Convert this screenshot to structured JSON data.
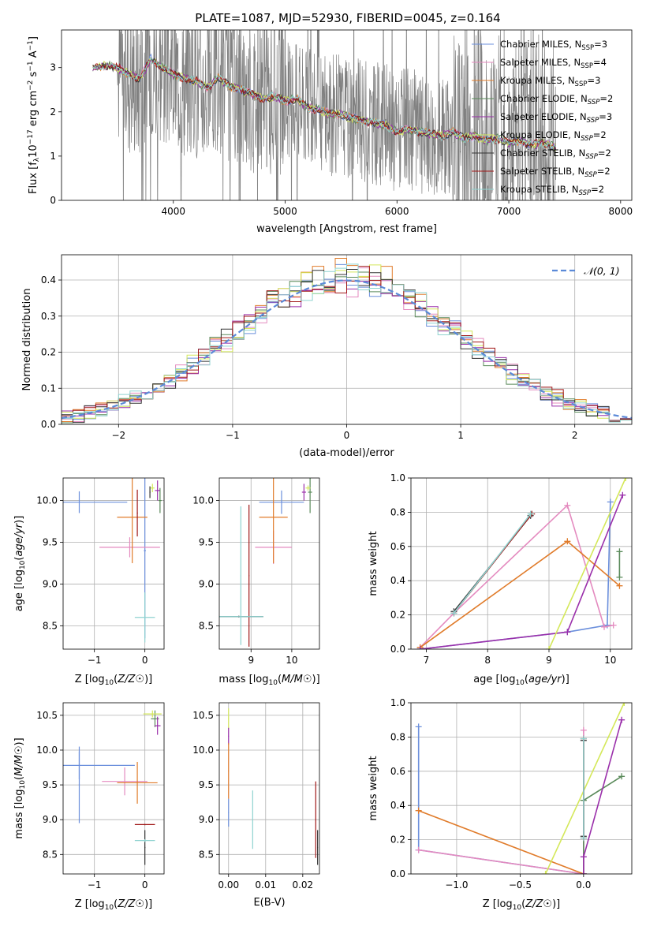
{
  "figure": {
    "title": "PLATE=1087, MJD=52930, FIBERID=0045, z=0.164"
  },
  "colors": {
    "chabrier_miles": "#6b8fdc",
    "salpeter_miles": "#e48abf",
    "kroupa_miles": "#e07b2a",
    "chabrier_elodie": "#5a8a5a",
    "salpeter_elodie": "#9a2faa",
    "kroupa_elodie": "#d4e85a",
    "chabrier_stelib": "#333333",
    "salpeter_stelib": "#a01818",
    "kroupa_stelib": "#8fd3d0",
    "data": "#808080",
    "normal": "#5b8ad8"
  },
  "legend": [
    {
      "key": "chabrier_miles",
      "pre": "Chabrier MILES, N",
      "sub": "SSP",
      "post": "=3"
    },
    {
      "key": "salpeter_miles",
      "pre": "Salpeter MILES, N",
      "sub": "SSP",
      "post": "=4"
    },
    {
      "key": "kroupa_miles",
      "pre": "Kroupa MILES, N",
      "sub": "SSP",
      "post": "=3"
    },
    {
      "key": "chabrier_elodie",
      "pre": "Chabrier ELODIE, N",
      "sub": "SSP",
      "post": "=2"
    },
    {
      "key": "salpeter_elodie",
      "pre": "Salpeter ELODIE, N",
      "sub": "SSP",
      "post": "=3"
    },
    {
      "key": "kroupa_elodie",
      "pre": "Kroupa ELODIE, N",
      "sub": "SSP",
      "post": "=2"
    },
    {
      "key": "chabrier_stelib",
      "pre": "Chabrier STELIB, N",
      "sub": "SSP",
      "post": "=2"
    },
    {
      "key": "salpeter_stelib",
      "pre": "Salpeter STELIB, N",
      "sub": "SSP",
      "post": "=2"
    },
    {
      "key": "kroupa_stelib",
      "pre": "Kroupa STELIB, N",
      "sub": "SSP",
      "post": "=2"
    }
  ],
  "chart_data": [
    {
      "id": "spectrum",
      "type": "line",
      "xlabel": "wavelength [Angstrom, rest frame]",
      "ylabel": "Flux [f_λ10^-17 erg cm^-2 s^-1 A^-1]",
      "xlim": [
        3000,
        8100
      ],
      "ylim": [
        0,
        3.85
      ],
      "xticks": [
        4000,
        5000,
        6000,
        7000,
        8000
      ],
      "yticks": [
        0,
        1,
        2,
        3
      ],
      "grid": false,
      "data_range": [
        3280,
        7420
      ],
      "model_range": [
        3280,
        7420
      ],
      "continuum": [
        [
          3280,
          3.0
        ],
        [
          3400,
          3.05
        ],
        [
          3500,
          3.0
        ],
        [
          3600,
          2.85
        ],
        [
          3700,
          2.75
        ],
        [
          3800,
          3.2
        ],
        [
          3900,
          3.0
        ],
        [
          4000,
          2.85
        ],
        [
          4100,
          2.75
        ],
        [
          4200,
          2.7
        ],
        [
          4300,
          2.55
        ],
        [
          4400,
          2.75
        ],
        [
          4500,
          2.6
        ],
        [
          4600,
          2.5
        ],
        [
          4700,
          2.4
        ],
        [
          4800,
          2.3
        ],
        [
          4900,
          2.35
        ],
        [
          5000,
          2.25
        ],
        [
          5100,
          2.3
        ],
        [
          5200,
          2.1
        ],
        [
          5300,
          2.05
        ],
        [
          5400,
          1.95
        ],
        [
          5500,
          1.95
        ],
        [
          5600,
          1.85
        ],
        [
          5700,
          1.8
        ],
        [
          5800,
          1.75
        ],
        [
          5900,
          1.7
        ],
        [
          6000,
          1.55
        ],
        [
          6100,
          1.6
        ],
        [
          6200,
          1.55
        ],
        [
          6300,
          1.5
        ],
        [
          6400,
          1.45
        ],
        [
          6500,
          1.55
        ],
        [
          6600,
          1.4
        ],
        [
          6700,
          1.45
        ],
        [
          6800,
          1.35
        ],
        [
          6900,
          1.4
        ],
        [
          7000,
          1.3
        ],
        [
          7100,
          1.35
        ],
        [
          7200,
          1.25
        ],
        [
          7300,
          1.3
        ],
        [
          7420,
          1.2
        ]
      ],
      "series_keys": [
        "chabrier_miles",
        "salpeter_miles",
        "kroupa_miles",
        "chabrier_elodie",
        "salpeter_elodie",
        "kroupa_elodie",
        "chabrier_stelib",
        "salpeter_stelib",
        "kroupa_stelib"
      ]
    },
    {
      "id": "residuals",
      "type": "line",
      "xlabel": "(data-model)/error",
      "ylabel": "Normed distribution",
      "xlim": [
        -2.5,
        2.5
      ],
      "ylim": [
        0,
        0.47
      ],
      "xticks": [
        -2,
        -1,
        0,
        1,
        2
      ],
      "yticks": [
        0.0,
        0.1,
        0.2,
        0.3,
        0.4
      ],
      "grid": true,
      "legend_label": "𝒩(0, 1)",
      "legend_position": "top-right",
      "bin_width": 0.1
    },
    {
      "id": "z_age",
      "type": "scatter",
      "xlabel": "Z [log10(Z/Z☉)]",
      "ylabel": "age  [log10(age/yr)]",
      "xlim": [
        -1.62,
        0.38
      ],
      "ylim": [
        8.22,
        10.27
      ],
      "xticks": [
        -1,
        0
      ],
      "yticks": [
        8.5,
        9.0,
        9.5,
        10.0
      ],
      "grid": true,
      "points": [
        {
          "key": "chabrier_miles",
          "x": -1.3,
          "y": 9.98,
          "xerr": 0.95,
          "yerr": 0.13
        },
        {
          "key": "chabrier_miles",
          "x": 0.0,
          "y": 9.4,
          "xerr": 0.02,
          "yerr": 1.05
        },
        {
          "key": "salpeter_miles",
          "x": -0.3,
          "y": 9.44,
          "xerr": 0.6,
          "yerr": 0.12
        },
        {
          "key": "kroupa_miles",
          "x": -0.25,
          "y": 9.8,
          "xerr": 0.3,
          "yerr": 0.55
        },
        {
          "key": "chabrier_elodie",
          "x": 0.3,
          "y": 10.0,
          "xerr": 0.03,
          "yerr": 0.15
        },
        {
          "key": "salpeter_elodie",
          "x": 0.25,
          "y": 10.12,
          "xerr": 0.05,
          "yerr": 0.12
        },
        {
          "key": "kroupa_elodie",
          "x": 0.15,
          "y": 10.15,
          "xerr": 0.04,
          "yerr": 0.05
        },
        {
          "key": "chabrier_stelib",
          "x": 0.1,
          "y": 10.1,
          "xerr": 0.01,
          "yerr": 0.07
        },
        {
          "key": "salpeter_stelib",
          "x": -0.15,
          "y": 9.85,
          "xerr": 0.01,
          "yerr": 0.28
        },
        {
          "key": "kroupa_stelib",
          "x": 0.0,
          "y": 8.6,
          "xerr": 0.2,
          "yerr": 0.3
        }
      ]
    },
    {
      "id": "mass_age",
      "type": "scatter",
      "xlabel": "mass [log10(M/M☉)]",
      "ylabel": "",
      "xlim": [
        8.22,
        10.68
      ],
      "ylim": [
        8.22,
        10.27
      ],
      "xticks": [
        9,
        10
      ],
      "yticks": [
        8.5,
        9.0,
        9.5,
        10.0
      ],
      "grid": true,
      "points": [
        {
          "key": "chabrier_miles",
          "x": 9.75,
          "y": 9.98,
          "xerr": 0.55,
          "yerr": 0.14
        },
        {
          "key": "salpeter_miles",
          "x": 9.55,
          "y": 9.44,
          "xerr": 0.45,
          "yerr": 0.2
        },
        {
          "key": "kroupa_miles",
          "x": 9.55,
          "y": 9.8,
          "xerr": 0.35,
          "yerr": 0.55
        },
        {
          "key": "chabrier_elodie",
          "x": 10.45,
          "y": 10.1,
          "xerr": 0.05,
          "yerr": 0.25
        },
        {
          "key": "salpeter_elodie",
          "x": 10.3,
          "y": 10.1,
          "xerr": 0.05,
          "yerr": 0.1
        },
        {
          "key": "kroupa_elodie",
          "x": 10.4,
          "y": 10.15,
          "xerr": 0.06,
          "yerr": 0.03
        },
        {
          "key": "chabrier_stelib",
          "x": 8.7,
          "y": 8.61,
          "xerr": 0.6,
          "yerr": 0.01
        },
        {
          "key": "salpeter_stelib",
          "x": 8.95,
          "y": 9.1,
          "xerr": 0.01,
          "yerr": 0.85
        },
        {
          "key": "kroupa_stelib",
          "x": 8.75,
          "y": 9.1,
          "xerr": 0.01,
          "yerr": 0.83
        },
        {
          "key": "kroupa_stelib",
          "x": 8.75,
          "y": 8.61,
          "xerr": 0.55,
          "yerr": 0.01
        }
      ]
    },
    {
      "id": "age_weight",
      "type": "line",
      "xlabel": "age  [log10(age/yr)]",
      "ylabel": "mass weight",
      "xlim": [
        6.75,
        10.35
      ],
      "ylim": [
        0,
        1.0
      ],
      "xticks": [
        7,
        8,
        9,
        10
      ],
      "yticks": [
        0.0,
        0.2,
        0.4,
        0.6,
        0.8,
        1.0
      ],
      "grid": true,
      "lines": [
        {
          "key": "chabrier_miles",
          "x": [
            6.9,
            9.3,
            9.95,
            10.0
          ],
          "y": [
            0.0,
            0.1,
            0.14,
            0.86
          ]
        },
        {
          "key": "salpeter_miles",
          "x": [
            6.9,
            7.45,
            9.3,
            9.9,
            10.05
          ],
          "y": [
            0.01,
            0.21,
            0.84,
            0.13,
            0.14
          ]
        },
        {
          "key": "kroupa_miles",
          "x": [
            6.9,
            9.3,
            10.15
          ],
          "y": [
            0.01,
            0.63,
            0.37
          ]
        },
        {
          "key": "chabrier_elodie",
          "x": [
            10.15,
            10.15
          ],
          "y": [
            0.42,
            0.57
          ]
        },
        {
          "key": "salpeter_elodie",
          "x": [
            6.9,
            9.3,
            10.2
          ],
          "y": [
            0.0,
            0.1,
            0.9
          ]
        },
        {
          "key": "kroupa_elodie",
          "x": [
            9.0,
            10.25
          ],
          "y": [
            0.0,
            1.0
          ]
        },
        {
          "key": "chabrier_stelib",
          "x": [
            7.45,
            8.7
          ],
          "y": [
            0.22,
            0.78
          ]
        },
        {
          "key": "salpeter_stelib",
          "x": [
            7.45,
            8.72
          ],
          "y": [
            0.21,
            0.79
          ]
        },
        {
          "key": "kroupa_stelib",
          "x": [
            7.45,
            8.7
          ],
          "y": [
            0.21,
            0.79
          ]
        }
      ]
    },
    {
      "id": "z_mass",
      "type": "scatter",
      "xlabel": "Z [log10(Z/Z☉)]",
      "ylabel": "mass [log10(M/M☉)]",
      "xlim": [
        -1.62,
        0.38
      ],
      "ylim": [
        8.22,
        10.68
      ],
      "xticks": [
        -1,
        0
      ],
      "yticks": [
        8.5,
        9.0,
        9.5,
        10.0,
        10.5
      ],
      "grid": true,
      "points": [
        {
          "key": "chabrier_miles",
          "x": -1.3,
          "y": 9.78,
          "xerr": 1.1,
          "yerr": 0.2
        },
        {
          "key": "salpeter_miles",
          "x": -0.4,
          "y": 9.55,
          "xerr": 0.45,
          "yerr": 0.2
        },
        {
          "key": "kroupa_miles",
          "x": -0.15,
          "y": 9.53,
          "xerr": 0.4,
          "yerr": 0.3
        },
        {
          "key": "chabrier_elodie",
          "x": 0.2,
          "y": 10.45,
          "xerr": 0.08,
          "yerr": 0.12
        },
        {
          "key": "salpeter_elodie",
          "x": 0.25,
          "y": 10.35,
          "xerr": 0.06,
          "yerr": 0.13
        },
        {
          "key": "kroupa_elodie",
          "x": 0.15,
          "y": 10.52,
          "xerr": 0.18,
          "yerr": 0.05
        },
        {
          "key": "chabrier_stelib",
          "x": 0.0,
          "y": 8.6,
          "xerr": 0.01,
          "yerr": 0.25
        },
        {
          "key": "salpeter_stelib",
          "x": 0.0,
          "y": 8.93,
          "xerr": 0.2,
          "yerr": 0.01
        },
        {
          "key": "kroupa_stelib",
          "x": 0.0,
          "y": 8.7,
          "xerr": 0.2,
          "yerr": 0.02
        },
        {
          "key": "chabrier_miles",
          "x": -1.3,
          "y": 9.5,
          "xerr": 0.01,
          "yerr": 0.55
        }
      ]
    },
    {
      "id": "ebv_mass",
      "type": "scatter",
      "xlabel": "E(B-V)",
      "ylabel": "",
      "xlim": [
        -0.0025,
        0.0245
      ],
      "ylim": [
        8.22,
        10.68
      ],
      "xticks": [
        0.0,
        0.01,
        0.02
      ],
      "xticklabels": [
        "0.00",
        "0.01",
        "0.02"
      ],
      "yticks": [
        8.5,
        9.0,
        9.5,
        10.0,
        10.5
      ],
      "grid": true,
      "points": [
        {
          "key": "kroupa_elodie",
          "x": 0.0,
          "y": 10.45,
          "xerr": 0.0001,
          "yerr": 0.15
        },
        {
          "key": "salpeter_elodie",
          "x": 0.0,
          "y": 10.2,
          "xerr": 0.0001,
          "yerr": 0.12
        },
        {
          "key": "kroupa_miles",
          "x": 0.0,
          "y": 9.7,
          "xerr": 0.0001,
          "yerr": 0.4
        },
        {
          "key": "chabrier_miles",
          "x": 0.0,
          "y": 9.1,
          "xerr": 0.0001,
          "yerr": 0.2
        },
        {
          "key": "kroupa_stelib",
          "x": 0.0065,
          "y": 9.0,
          "xerr": 0.0001,
          "yerr": 0.42
        },
        {
          "key": "salpeter_stelib",
          "x": 0.0235,
          "y": 9.0,
          "xerr": 0.0001,
          "yerr": 0.55
        },
        {
          "key": "chabrier_stelib",
          "x": 0.024,
          "y": 8.6,
          "xerr": 0.0001,
          "yerr": 0.25
        }
      ]
    },
    {
      "id": "z_weight",
      "type": "line",
      "xlabel": "Z [log10(Z/Z☉)]",
      "ylabel": "mass weight",
      "xlim": [
        -1.36,
        0.38
      ],
      "ylim": [
        0,
        1.0
      ],
      "xticks": [
        -1.0,
        -0.5,
        0.0
      ],
      "xticklabels": [
        "−1.0",
        "−0.5",
        "0.0"
      ],
      "yticks": [
        0.0,
        0.2,
        0.4,
        0.6,
        0.8,
        1.0
      ],
      "grid": true,
      "lines": [
        {
          "key": "chabrier_miles",
          "x": [
            -1.3,
            -1.3,
            0.0
          ],
          "y": [
            0.86,
            0.14,
            0.0
          ]
        },
        {
          "key": "salpeter_miles",
          "x": [
            -1.3,
            0.0,
            0.0
          ],
          "y": [
            0.14,
            0.0,
            0.84
          ]
        },
        {
          "key": "kroupa_miles",
          "x": [
            -1.3,
            0.0
          ],
          "y": [
            0.37,
            0.0
          ]
        },
        {
          "key": "chabrier_elodie",
          "x": [
            0.0,
            0.0,
            0.3
          ],
          "y": [
            0.0,
            0.43,
            0.57
          ]
        },
        {
          "key": "salpeter_elodie",
          "x": [
            0.0,
            0.0,
            0.3
          ],
          "y": [
            0.0,
            0.1,
            0.9
          ]
        },
        {
          "key": "kroupa_elodie",
          "x": [
            -0.3,
            0.32
          ],
          "y": [
            0.0,
            1.0
          ]
        },
        {
          "key": "chabrier_stelib",
          "x": [
            0.0,
            0.0
          ],
          "y": [
            0.22,
            0.78
          ]
        },
        {
          "key": "salpeter_stelib",
          "x": [
            0.0,
            0.0
          ],
          "y": [
            0.21,
            0.79
          ]
        },
        {
          "key": "kroupa_stelib",
          "x": [
            0.0,
            0.0
          ],
          "y": [
            0.21,
            0.79
          ]
        }
      ]
    }
  ]
}
